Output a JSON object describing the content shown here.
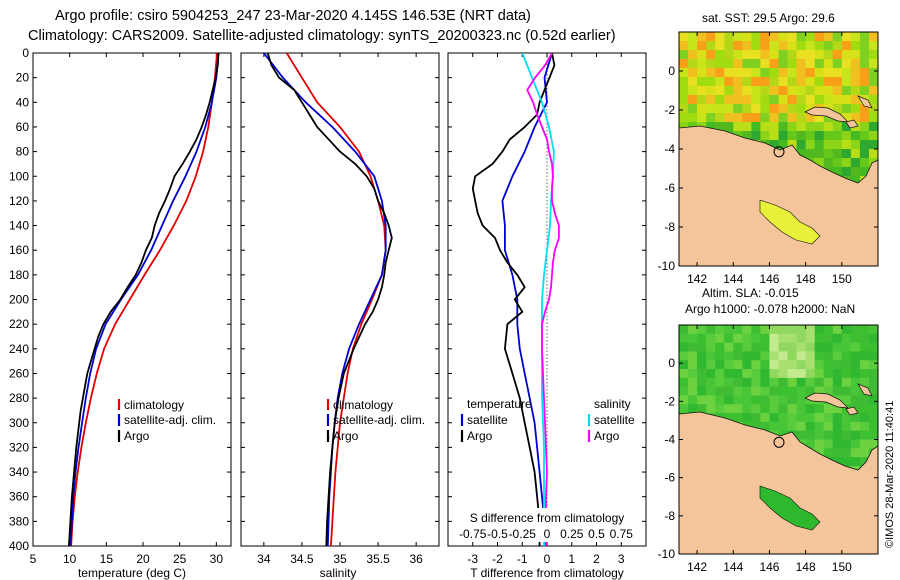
{
  "header": {
    "title_line1": "Argo profile: csiro 5904253_247 23-Mar-2020 4.145S 146.53E (NRT data)",
    "title_line2": "Climatology: CARS2009. Satellite-adjusted climatology: synTS_20200323.nc (0.52d earlier)"
  },
  "colors": {
    "climatology": "#e00000",
    "satellite": "#0000d0",
    "argo": "#000000",
    "sal_satellite": "#00e0ee",
    "sal_argo": "#ff00ff",
    "land": "#f4c49a"
  },
  "depth_ticks": [
    "0",
    "20",
    "40",
    "60",
    "80",
    "100",
    "120",
    "140",
    "160",
    "180",
    "200",
    "220",
    "240",
    "260",
    "280",
    "300",
    "320",
    "340",
    "360",
    "380",
    "400"
  ],
  "chart_data": [
    {
      "type": "line",
      "title": "",
      "xlabel": "temperature (deg C)",
      "ylabel": "",
      "xlim": [
        5,
        32
      ],
      "ylim": [
        400,
        0
      ],
      "xticks": [
        "5",
        "10",
        "15",
        "20",
        "25",
        "30"
      ],
      "legend": {
        "position": "bottom-right",
        "entries": [
          "climatology",
          "satellite-adj. clim.",
          "Argo"
        ]
      },
      "series": [
        {
          "name": "climatology",
          "color": "#e00000",
          "depth": [
            0,
            20,
            40,
            60,
            80,
            100,
            120,
            140,
            160,
            180,
            200,
            220,
            240,
            260,
            280,
            300,
            320,
            340,
            360,
            380,
            400
          ],
          "values": [
            30.1,
            29.8,
            29.4,
            28.9,
            28.2,
            27.2,
            25.9,
            24.2,
            22.3,
            20.2,
            18.2,
            16.2,
            14.7,
            13.7,
            12.9,
            12.2,
            11.6,
            11.1,
            10.7,
            10.4,
            10.2
          ]
        },
        {
          "name": "satellite-adj. clim.",
          "color": "#0000d0",
          "depth": [
            0,
            20,
            40,
            60,
            80,
            100,
            120,
            140,
            160,
            180,
            200,
            220,
            240,
            260,
            280,
            300,
            320,
            340,
            360,
            380,
            400
          ],
          "values": [
            30.3,
            30.0,
            29.4,
            28.5,
            27.3,
            25.8,
            24.1,
            22.6,
            21.1,
            19.3,
            17.0,
            14.9,
            13.6,
            12.8,
            12.2,
            11.7,
            11.2,
            10.8,
            10.5,
            10.3,
            10.1
          ]
        },
        {
          "name": "Argo",
          "color": "#000000",
          "depth": [
            0,
            10,
            20,
            30,
            40,
            50,
            60,
            70,
            80,
            90,
            100,
            110,
            120,
            130,
            140,
            150,
            160,
            170,
            180,
            190,
            200,
            210,
            220,
            230,
            240,
            250,
            260,
            270,
            280,
            290,
            300,
            320,
            340,
            360,
            380,
            400
          ],
          "values": [
            30.3,
            30.2,
            29.9,
            29.5,
            29.1,
            28.6,
            28.0,
            27.3,
            26.4,
            25.4,
            24.3,
            23.7,
            23.0,
            22.2,
            21.6,
            21.2,
            20.4,
            19.8,
            19.0,
            17.9,
            16.9,
            15.6,
            14.6,
            13.9,
            13.4,
            12.9,
            12.4,
            12.1,
            11.8,
            11.5,
            11.3,
            10.9,
            10.6,
            10.3,
            10.1,
            9.9
          ]
        }
      ]
    },
    {
      "type": "line",
      "title": "",
      "xlabel": "salinity",
      "ylabel": "",
      "xlim": [
        33.7,
        36.3
      ],
      "ylim": [
        400,
        0
      ],
      "xticks": [
        "34",
        "34.5",
        "35",
        "35.5",
        "36"
      ],
      "legend": {
        "position": "bottom-right",
        "entries": [
          "climatology",
          "satellite-adj. clim.",
          "Argo"
        ]
      },
      "series": [
        {
          "name": "climatology",
          "color": "#e00000",
          "depth": [
            0,
            20,
            40,
            60,
            80,
            100,
            120,
            140,
            160,
            180,
            200,
            220,
            240,
            260,
            280,
            300,
            320,
            340,
            360,
            380,
            400
          ],
          "values": [
            34.3,
            34.5,
            34.7,
            35.0,
            35.25,
            35.4,
            35.5,
            35.58,
            35.6,
            35.55,
            35.42,
            35.28,
            35.17,
            35.1,
            35.05,
            35.0,
            34.97,
            34.94,
            34.92,
            34.9,
            34.88
          ]
        },
        {
          "name": "satellite-adj. clim.",
          "color": "#0000d0",
          "depth": [
            0,
            20,
            40,
            60,
            80,
            100,
            120,
            140,
            160,
            180,
            200,
            220,
            240,
            260,
            280,
            300,
            320,
            340,
            360,
            380,
            400
          ],
          "values": [
            34.0,
            34.25,
            34.55,
            34.9,
            35.2,
            35.45,
            35.55,
            35.6,
            35.6,
            35.55,
            35.4,
            35.25,
            35.12,
            35.03,
            34.97,
            34.93,
            34.9,
            34.88,
            34.86,
            34.85,
            34.84
          ]
        },
        {
          "name": "Argo",
          "color": "#000000",
          "depth": [
            0,
            10,
            20,
            30,
            40,
            50,
            60,
            70,
            80,
            90,
            100,
            110,
            120,
            130,
            140,
            150,
            160,
            170,
            180,
            190,
            200,
            210,
            220,
            240,
            260,
            280,
            300,
            320,
            340,
            360,
            380,
            400
          ],
          "values": [
            34.05,
            34.1,
            34.2,
            34.4,
            34.5,
            34.6,
            34.7,
            34.85,
            35.0,
            35.2,
            35.35,
            35.45,
            35.5,
            35.58,
            35.64,
            35.68,
            35.64,
            35.6,
            35.58,
            35.55,
            35.5,
            35.43,
            35.33,
            35.18,
            35.05,
            34.98,
            34.93,
            34.9,
            34.87,
            34.85,
            34.83,
            34.82
          ]
        }
      ]
    },
    {
      "type": "line",
      "title": "",
      "xlabel": "T difference from climatology",
      "ylabel": "",
      "xlim": [
        -4,
        4
      ],
      "ylim": [
        400,
        0
      ],
      "xticks": [
        "-3",
        "-2",
        "-1",
        "0",
        "1",
        "2",
        "3"
      ],
      "top_axis": {
        "label": "S difference from climatology",
        "ticks": [
          "-0.75",
          "-0.5",
          "-0.25",
          "0",
          "0.25",
          "0.5",
          "0.75"
        ]
      },
      "legend": {
        "position": "bottom",
        "groups": [
          {
            "title": "temperature",
            "entries": [
              "satellite",
              "Argo"
            ]
          },
          {
            "title": "salinity",
            "entries": [
              "satellite",
              "Argo"
            ]
          }
        ]
      },
      "series": [
        {
          "name": "temperature satellite",
          "color": "#0000d0",
          "depth": [
            0,
            20,
            40,
            60,
            80,
            100,
            120,
            140,
            160,
            180,
            200,
            220,
            240,
            260,
            280,
            300,
            320,
            340,
            360,
            380,
            400
          ],
          "values": [
            0.2,
            -0.1,
            0.0,
            -0.5,
            -0.9,
            -1.4,
            -1.8,
            -1.7,
            -1.7,
            -1.4,
            -1.2,
            -1.2,
            -1.1,
            -0.9,
            -0.7,
            -0.5,
            -0.4,
            -0.3,
            -0.2,
            -0.1,
            -0.1
          ]
        },
        {
          "name": "temperature Argo",
          "color": "#000000",
          "depth": [
            0,
            10,
            20,
            30,
            40,
            50,
            60,
            70,
            80,
            90,
            100,
            110,
            120,
            130,
            140,
            150,
            160,
            170,
            180,
            190,
            200,
            210,
            220,
            240,
            260,
            280,
            300,
            320,
            340,
            360,
            380,
            400
          ],
          "values": [
            0.2,
            0.3,
            0.1,
            -0.1,
            -0.3,
            -0.4,
            -0.9,
            -1.5,
            -1.8,
            -2.2,
            -2.9,
            -3.0,
            -2.9,
            -2.8,
            -2.6,
            -2.1,
            -1.9,
            -1.6,
            -1.2,
            -0.9,
            -1.3,
            -1.0,
            -1.6,
            -1.7,
            -1.4,
            -1.1,
            -0.9,
            -0.7,
            -0.5,
            -0.4,
            -0.3,
            -0.3
          ]
        },
        {
          "name": "salinity satellite",
          "color": "#00e0ee",
          "axis": "top",
          "depth": [
            0,
            20,
            40,
            60,
            80,
            100,
            120,
            140,
            160,
            180,
            200,
            220,
            240,
            260,
            280,
            300,
            320,
            340,
            360,
            380,
            400
          ],
          "values": [
            -0.25,
            -0.15,
            -0.05,
            0.02,
            0.07,
            0.06,
            0.04,
            0.03,
            0.0,
            -0.03,
            -0.05,
            -0.05,
            -0.05,
            -0.05,
            -0.05,
            -0.04,
            -0.03,
            -0.03,
            -0.03,
            -0.03,
            -0.03
          ]
        },
        {
          "name": "salinity Argo",
          "color": "#ff00ff",
          "axis": "top",
          "depth": [
            0,
            10,
            20,
            30,
            40,
            50,
            60,
            70,
            80,
            90,
            100,
            110,
            120,
            130,
            140,
            150,
            160,
            170,
            180,
            190,
            200,
            210,
            220,
            240,
            260,
            280,
            300,
            320,
            340,
            360,
            380,
            400
          ],
          "values": [
            0.05,
            -0.02,
            -0.12,
            -0.2,
            -0.14,
            -0.1,
            -0.05,
            0.0,
            0.02,
            0.05,
            0.06,
            0.05,
            0.05,
            0.08,
            0.12,
            0.12,
            0.08,
            0.06,
            0.05,
            0.04,
            0.02,
            -0.02,
            -0.05,
            -0.05,
            -0.04,
            -0.03,
            -0.02,
            -0.01,
            0.0,
            -0.01,
            -0.01,
            -0.01
          ]
        }
      ]
    },
    {
      "type": "heatmap",
      "title": "sat. SST: 29.5 Argo: 29.6",
      "xlim": [
        141,
        152
      ],
      "ylim": [
        -10,
        2
      ],
      "xticks": [
        "142",
        "144",
        "146",
        "148",
        "150"
      ],
      "yticks": [
        "0",
        "-2",
        "-4",
        "-6",
        "-8",
        "-10"
      ],
      "marker": {
        "lon": 146.53,
        "lat": -4.145
      }
    },
    {
      "type": "heatmap",
      "title": "Altim. SLA: -0.015",
      "subtitle": "Argo h1000: -0.078 h2000: NaN",
      "xlim": [
        141,
        152
      ],
      "ylim": [
        -10,
        2
      ],
      "xticks": [
        "142",
        "144",
        "146",
        "148",
        "150"
      ],
      "yticks": [
        "0",
        "-2",
        "-4",
        "-6",
        "-8",
        "-10"
      ],
      "marker": {
        "lon": 146.53,
        "lat": -4.145
      }
    }
  ],
  "credit": "©IMOS 28-Mar-2020 11:40:41"
}
